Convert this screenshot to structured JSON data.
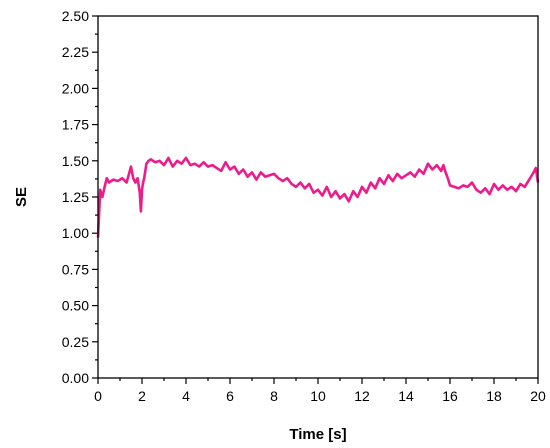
{
  "chart_data": {
    "type": "line",
    "title": "",
    "xlabel": "Time [s]",
    "ylabel": "SE",
    "xlim": [
      0,
      20
    ],
    "ylim": [
      0,
      2.5
    ],
    "x_ticks": [
      0,
      2,
      4,
      6,
      8,
      10,
      12,
      14,
      16,
      18,
      20
    ],
    "x_tick_labels": [
      "0",
      "2",
      "4",
      "6",
      "8",
      "10",
      "12",
      "14",
      "16",
      "18",
      "20"
    ],
    "y_ticks": [
      0,
      0.25,
      0.5,
      0.75,
      1.0,
      1.25,
      1.5,
      1.75,
      2.0,
      2.25,
      2.5
    ],
    "y_tick_labels": [
      "0.00",
      "0.25",
      "0.50",
      "0.75",
      "1.00",
      "1.25",
      "1.50",
      "1.75",
      "2.00",
      "2.25",
      "2.50"
    ],
    "grid": false,
    "legend": "none",
    "series": [
      {
        "color": "#ec1c8c",
        "x": [
          0,
          0.1,
          0.2,
          0.3,
          0.4,
          0.5,
          0.7,
          0.9,
          1.1,
          1.3,
          1.5,
          1.6,
          1.7,
          1.8,
          1.9,
          1.95,
          2.0,
          2.05,
          2.1,
          2.2,
          2.3,
          2.4,
          2.6,
          2.8,
          3.0,
          3.2,
          3.4,
          3.6,
          3.8,
          4.0,
          4.2,
          4.4,
          4.6,
          4.8,
          5.0,
          5.2,
          5.4,
          5.6,
          5.8,
          6.0,
          6.2,
          6.4,
          6.6,
          6.8,
          7.0,
          7.2,
          7.4,
          7.6,
          7.8,
          8.0,
          8.2,
          8.4,
          8.6,
          8.8,
          9.0,
          9.2,
          9.4,
          9.6,
          9.8,
          10.0,
          10.2,
          10.4,
          10.6,
          10.8,
          11.0,
          11.2,
          11.4,
          11.6,
          11.8,
          12.0,
          12.2,
          12.4,
          12.6,
          12.8,
          13.0,
          13.2,
          13.4,
          13.6,
          13.8,
          14.0,
          14.2,
          14.4,
          14.6,
          14.8,
          15.0,
          15.2,
          15.4,
          15.6,
          15.7,
          15.8,
          15.9,
          16.0,
          16.2,
          16.4,
          16.6,
          16.8,
          17.0,
          17.2,
          17.4,
          17.6,
          17.8,
          18.0,
          18.2,
          18.4,
          18.6,
          18.8,
          19.0,
          19.2,
          19.4,
          19.6,
          19.8,
          19.9,
          20.0
        ],
        "values": [
          0.97,
          1.3,
          1.25,
          1.32,
          1.38,
          1.35,
          1.37,
          1.36,
          1.38,
          1.35,
          1.46,
          1.38,
          1.35,
          1.38,
          1.28,
          1.15,
          1.3,
          1.35,
          1.38,
          1.48,
          1.5,
          1.51,
          1.49,
          1.5,
          1.47,
          1.52,
          1.46,
          1.5,
          1.48,
          1.52,
          1.47,
          1.48,
          1.46,
          1.49,
          1.46,
          1.47,
          1.45,
          1.43,
          1.49,
          1.44,
          1.46,
          1.41,
          1.44,
          1.39,
          1.42,
          1.37,
          1.42,
          1.39,
          1.4,
          1.41,
          1.38,
          1.36,
          1.38,
          1.34,
          1.32,
          1.35,
          1.31,
          1.34,
          1.28,
          1.3,
          1.26,
          1.32,
          1.25,
          1.29,
          1.24,
          1.27,
          1.22,
          1.29,
          1.25,
          1.32,
          1.28,
          1.35,
          1.31,
          1.38,
          1.34,
          1.4,
          1.36,
          1.41,
          1.38,
          1.4,
          1.42,
          1.39,
          1.44,
          1.41,
          1.48,
          1.44,
          1.47,
          1.43,
          1.47,
          1.42,
          1.38,
          1.33,
          1.32,
          1.31,
          1.33,
          1.32,
          1.35,
          1.3,
          1.28,
          1.31,
          1.27,
          1.34,
          1.3,
          1.33,
          1.3,
          1.32,
          1.29,
          1.34,
          1.32,
          1.37,
          1.42,
          1.45,
          1.35
        ]
      }
    ]
  }
}
